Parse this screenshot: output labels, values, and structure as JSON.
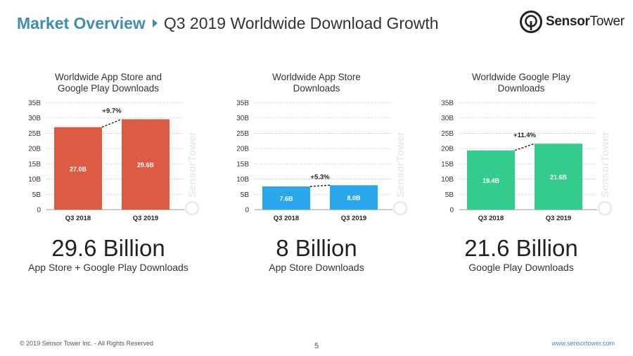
{
  "header": {
    "section": "Market Overview",
    "title": "Q3 2019 Worldwide Download Growth"
  },
  "logo": {
    "bold": "Sensor",
    "light": "Tower"
  },
  "watermark": "SensorTower",
  "chart_data": [
    {
      "type": "bar",
      "title": "Worldwide App Store and Google Play Downloads",
      "title_lines": [
        "Worldwide App Store and",
        "Google Play Downloads"
      ],
      "categories": [
        "Q3 2018",
        "Q3 2019"
      ],
      "values": [
        27.0,
        29.6
      ],
      "value_labels": [
        "27.0B",
        "29.6B"
      ],
      "growth_label": "+9.7%",
      "ylim": [
        0,
        35
      ],
      "yticks": [
        0,
        5,
        10,
        15,
        20,
        25,
        30,
        35
      ],
      "ytick_labels": [
        "0",
        "5B",
        "10B",
        "15B",
        "20B",
        "25B",
        "30B",
        "35B"
      ],
      "color": "#dc5b43",
      "big_number": "29.6 Billion",
      "subtitle": "App Store + Google Play Downloads"
    },
    {
      "type": "bar",
      "title": "Worldwide App Store Downloads",
      "title_lines": [
        "Worldwide App Store",
        "Downloads"
      ],
      "categories": [
        "Q3 2018",
        "Q3 2019"
      ],
      "values": [
        7.6,
        8.0
      ],
      "value_labels": [
        "7.6B",
        "8.0B"
      ],
      "growth_label": "+5.3%",
      "ylim": [
        0,
        35
      ],
      "yticks": [
        0,
        5,
        10,
        15,
        20,
        25,
        30,
        35
      ],
      "ytick_labels": [
        "0",
        "5B",
        "10B",
        "15B",
        "20B",
        "25B",
        "30B",
        "35B"
      ],
      "color": "#2aa7ea",
      "big_number": "8 Billion",
      "subtitle": "App Store Downloads"
    },
    {
      "type": "bar",
      "title": "Worldwide Google Play Downloads",
      "title_lines": [
        "Worldwide Google Play",
        "Downloads"
      ],
      "categories": [
        "Q3 2018",
        "Q3 2019"
      ],
      "values": [
        19.4,
        21.6
      ],
      "value_labels": [
        "19.4B",
        "21.6B"
      ],
      "growth_label": "+11.4%",
      "ylim": [
        0,
        35
      ],
      "yticks": [
        0,
        5,
        10,
        15,
        20,
        25,
        30,
        35
      ],
      "ytick_labels": [
        "0",
        "5B",
        "10B",
        "15B",
        "20B",
        "25B",
        "30B",
        "35B"
      ],
      "color": "#33cc8e",
      "big_number": "21.6 Billion",
      "subtitle": "Google Play Downloads"
    }
  ],
  "footer": {
    "copyright": "© 2019 Sensor Tower Inc. - All Rights Reserved",
    "page": "5",
    "url": "www.sensortower.com"
  }
}
